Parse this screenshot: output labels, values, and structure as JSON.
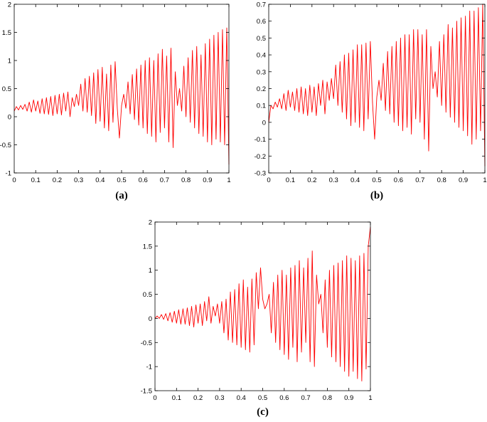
{
  "colors": {
    "series": "#ff0000",
    "axis": "#000000"
  },
  "chart_data": [
    {
      "type": "line",
      "caption": "(a)",
      "xlabel": "",
      "ylabel": "",
      "title": "",
      "xlim": [
        0,
        1
      ],
      "ylim": [
        -1,
        2
      ],
      "xticks": [
        0,
        0.1,
        0.2,
        0.3,
        0.4,
        0.5,
        0.6,
        0.7,
        0.8,
        0.9,
        1
      ],
      "xtick_labels": [
        "0",
        "0.1",
        "0.2",
        "0.3",
        "0.4",
        "0.5",
        "0.6",
        "0.7",
        "0.8",
        "0.9",
        "1"
      ],
      "yticks": [
        -1,
        -0.5,
        0,
        0.5,
        1,
        1.5,
        2
      ],
      "ytick_labels": [
        "-1",
        "-0.5",
        "0",
        "0.5",
        "1",
        "1.5",
        "2"
      ],
      "grid": false,
      "series": [
        {
          "x": [
            0,
            0.01,
            0.02,
            0.03,
            0.04,
            0.05,
            0.06,
            0.07,
            0.08,
            0.09,
            0.1,
            0.11,
            0.12,
            0.13,
            0.14,
            0.15,
            0.16,
            0.17,
            0.18,
            0.19,
            0.2,
            0.21,
            0.22,
            0.23,
            0.24,
            0.25,
            0.26,
            0.27,
            0.28,
            0.29,
            0.3,
            0.31,
            0.32,
            0.33,
            0.34,
            0.35,
            0.36,
            0.37,
            0.38,
            0.39,
            0.4,
            0.41,
            0.42,
            0.43,
            0.44,
            0.45,
            0.46,
            0.47,
            0.48,
            0.49,
            0.5,
            0.51,
            0.52,
            0.53,
            0.54,
            0.55,
            0.56,
            0.57,
            0.58,
            0.59,
            0.6,
            0.61,
            0.62,
            0.63,
            0.64,
            0.65,
            0.66,
            0.67,
            0.68,
            0.69,
            0.7,
            0.71,
            0.72,
            0.73,
            0.74,
            0.75,
            0.76,
            0.77,
            0.78,
            0.79,
            0.8,
            0.81,
            0.82,
            0.83,
            0.84,
            0.85,
            0.86,
            0.87,
            0.88,
            0.89,
            0.9,
            0.91,
            0.92,
            0.93,
            0.94,
            0.95,
            0.96,
            0.97,
            0.98,
            0.99,
            1
          ],
          "y": [
            0.1,
            0.18,
            0.12,
            0.2,
            0.13,
            0.22,
            0.1,
            0.26,
            0.08,
            0.3,
            0.1,
            0.28,
            0.06,
            0.32,
            0.05,
            0.34,
            0.04,
            0.36,
            0.02,
            0.38,
            0.05,
            0.4,
            0.03,
            0.42,
            0.1,
            0.44,
            0.0,
            0.34,
            0.18,
            0.4,
            0.2,
            0.58,
            0.1,
            0.68,
            0.08,
            0.72,
            0.02,
            0.78,
            -0.12,
            0.84,
            -0.08,
            0.88,
            -0.2,
            0.76,
            -0.25,
            0.92,
            -0.1,
            0.98,
            0.15,
            -0.38,
            0.2,
            0.4,
            0.15,
            0.62,
            0.05,
            0.75,
            -0.05,
            0.85,
            -0.15,
            0.92,
            -0.2,
            1.0,
            -0.3,
            1.05,
            -0.35,
            1.0,
            -0.45,
            1.12,
            -0.28,
            1.2,
            -0.2,
            1.08,
            -0.45,
            1.22,
            -0.55,
            0.8,
            0.2,
            0.5,
            0.1,
            0.9,
            0.0,
            1.05,
            -0.1,
            1.18,
            -0.2,
            1.25,
            -0.3,
            1.1,
            -0.35,
            1.3,
            -0.45,
            1.38,
            -0.5,
            1.45,
            -0.4,
            1.5,
            -0.45,
            1.55,
            -0.5,
            1.58,
            -0.85
          ]
        }
      ]
    },
    {
      "type": "line",
      "caption": "(b)",
      "xlabel": "",
      "ylabel": "",
      "title": "",
      "xlim": [
        0,
        1
      ],
      "ylim": [
        -0.3,
        0.7
      ],
      "xticks": [
        0,
        0.1,
        0.2,
        0.3,
        0.4,
        0.5,
        0.6,
        0.7,
        0.8,
        0.9,
        1
      ],
      "xtick_labels": [
        "0",
        "0.1",
        "0.2",
        "0.3",
        "0.4",
        "0.5",
        "0.6",
        "0.7",
        "0.8",
        "0.9",
        "1"
      ],
      "yticks": [
        -0.3,
        -0.2,
        -0.1,
        0,
        0.1,
        0.2,
        0.3,
        0.4,
        0.5,
        0.6,
        0.7
      ],
      "ytick_labels": [
        "-0.3",
        "-0.2",
        "-0.1",
        "0",
        "0.1",
        "0.2",
        "0.3",
        "0.4",
        "0.5",
        "0.6",
        "0.7"
      ],
      "grid": false,
      "series": [
        {
          "x": [
            0,
            0.01,
            0.02,
            0.03,
            0.04,
            0.05,
            0.06,
            0.07,
            0.08,
            0.09,
            0.1,
            0.11,
            0.12,
            0.13,
            0.14,
            0.15,
            0.16,
            0.17,
            0.18,
            0.19,
            0.2,
            0.21,
            0.22,
            0.23,
            0.24,
            0.25,
            0.26,
            0.27,
            0.28,
            0.29,
            0.3,
            0.31,
            0.32,
            0.33,
            0.34,
            0.35,
            0.36,
            0.37,
            0.38,
            0.39,
            0.4,
            0.41,
            0.42,
            0.43,
            0.44,
            0.45,
            0.46,
            0.47,
            0.48,
            0.49,
            0.5,
            0.51,
            0.52,
            0.53,
            0.54,
            0.55,
            0.56,
            0.57,
            0.58,
            0.59,
            0.6,
            0.61,
            0.62,
            0.63,
            0.64,
            0.65,
            0.66,
            0.67,
            0.68,
            0.69,
            0.7,
            0.71,
            0.72,
            0.73,
            0.74,
            0.75,
            0.76,
            0.77,
            0.78,
            0.79,
            0.8,
            0.81,
            0.82,
            0.83,
            0.84,
            0.85,
            0.86,
            0.87,
            0.88,
            0.89,
            0.9,
            0.91,
            0.92,
            0.93,
            0.94,
            0.95,
            0.96,
            0.97,
            0.98,
            0.99,
            1
          ],
          "y": [
            0.0,
            0.1,
            0.08,
            0.12,
            0.09,
            0.14,
            0.08,
            0.17,
            0.07,
            0.19,
            0.09,
            0.18,
            0.07,
            0.2,
            0.06,
            0.21,
            0.05,
            0.2,
            0.04,
            0.22,
            0.06,
            0.21,
            0.04,
            0.23,
            0.1,
            0.25,
            0.05,
            0.24,
            0.13,
            0.26,
            0.14,
            0.34,
            0.1,
            0.36,
            0.06,
            0.4,
            0.02,
            0.41,
            -0.02,
            0.43,
            0.0,
            0.46,
            -0.03,
            0.46,
            -0.05,
            0.47,
            0.02,
            0.48,
            0.12,
            -0.1,
            0.15,
            0.25,
            0.13,
            0.35,
            0.07,
            0.42,
            0.05,
            0.45,
            0.0,
            0.48,
            -0.02,
            0.5,
            -0.05,
            0.52,
            -0.03,
            0.52,
            -0.07,
            0.55,
            0.02,
            0.55,
            0.0,
            0.52,
            -0.1,
            0.55,
            -0.17,
            0.45,
            0.2,
            0.3,
            0.15,
            0.48,
            0.1,
            0.52,
            0.06,
            0.58,
            0.03,
            0.56,
            0.0,
            0.6,
            -0.03,
            0.62,
            -0.05,
            0.63,
            -0.08,
            0.66,
            -0.13,
            0.66,
            -0.1,
            0.68,
            -0.05,
            0.7,
            -0.26
          ]
        }
      ]
    },
    {
      "type": "line",
      "caption": "(c)",
      "xlabel": "",
      "ylabel": "",
      "title": "",
      "xlim": [
        0,
        1
      ],
      "ylim": [
        -1.5,
        2
      ],
      "xticks": [
        0,
        0.1,
        0.2,
        0.3,
        0.4,
        0.5,
        0.6,
        0.7,
        0.8,
        0.9,
        1
      ],
      "xtick_labels": [
        "0",
        "0.1",
        "0.2",
        "0.3",
        "0.4",
        "0.5",
        "0.6",
        "0.7",
        "0.8",
        "0.9",
        "1"
      ],
      "yticks": [
        -1.5,
        -1,
        -0.5,
        0,
        0.5,
        1,
        1.5,
        2
      ],
      "ytick_labels": [
        "-1.5",
        "-1",
        "-0.5",
        "0",
        "0.5",
        "1",
        "1.5",
        "2"
      ],
      "grid": false,
      "series": [
        {
          "x": [
            0,
            0.01,
            0.02,
            0.03,
            0.04,
            0.05,
            0.06,
            0.07,
            0.08,
            0.09,
            0.1,
            0.11,
            0.12,
            0.13,
            0.14,
            0.15,
            0.16,
            0.17,
            0.18,
            0.19,
            0.2,
            0.21,
            0.22,
            0.23,
            0.24,
            0.25,
            0.26,
            0.27,
            0.28,
            0.29,
            0.3,
            0.31,
            0.32,
            0.33,
            0.34,
            0.35,
            0.36,
            0.37,
            0.38,
            0.39,
            0.4,
            0.41,
            0.42,
            0.43,
            0.44,
            0.45,
            0.46,
            0.47,
            0.48,
            0.49,
            0.5,
            0.51,
            0.52,
            0.53,
            0.54,
            0.55,
            0.56,
            0.57,
            0.58,
            0.59,
            0.6,
            0.61,
            0.62,
            0.63,
            0.64,
            0.65,
            0.66,
            0.67,
            0.68,
            0.69,
            0.7,
            0.71,
            0.72,
            0.73,
            0.74,
            0.75,
            0.76,
            0.77,
            0.78,
            0.79,
            0.8,
            0.81,
            0.82,
            0.83,
            0.84,
            0.85,
            0.86,
            0.87,
            0.88,
            0.89,
            0.9,
            0.91,
            0.92,
            0.93,
            0.94,
            0.95,
            0.96,
            0.97,
            0.98,
            0.99,
            1
          ],
          "y": [
            0.0,
            0.05,
            0.0,
            0.08,
            -0.02,
            0.1,
            -0.05,
            0.12,
            -0.08,
            0.15,
            -0.1,
            0.18,
            -0.12,
            0.2,
            -0.12,
            0.22,
            -0.15,
            0.25,
            -0.18,
            0.28,
            -0.1,
            0.3,
            -0.15,
            0.35,
            -0.05,
            0.45,
            -0.1,
            0.25,
            0.05,
            0.3,
            -0.1,
            0.35,
            -0.3,
            0.4,
            -0.45,
            0.55,
            -0.5,
            0.6,
            -0.55,
            0.72,
            -0.6,
            0.8,
            -0.65,
            0.65,
            -0.7,
            0.82,
            -0.55,
            0.95,
            0.2,
            1.05,
            0.4,
            0.2,
            0.3,
            0.5,
            -0.3,
            0.75,
            -0.5,
            0.9,
            -0.65,
            1.0,
            -0.75,
            0.9,
            -0.85,
            1.05,
            -0.6,
            1.1,
            -0.9,
            1.2,
            -0.7,
            1.05,
            -0.5,
            1.25,
            -0.9,
            1.4,
            -1.0,
            0.9,
            0.3,
            0.5,
            -0.3,
            0.8,
            -0.6,
            1.0,
            -0.8,
            1.1,
            -0.9,
            1.15,
            -1.0,
            1.2,
            -1.1,
            1.3,
            -1.2,
            1.25,
            -1.1,
            1.2,
            -1.25,
            1.3,
            -1.3,
            1.35,
            -1.05,
            1.5,
            1.9
          ]
        }
      ]
    }
  ]
}
